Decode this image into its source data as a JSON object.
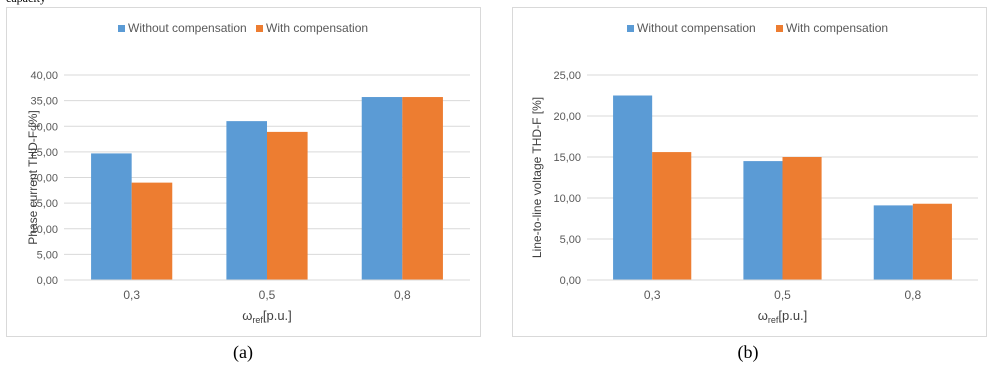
{
  "top_fragment": "capacity",
  "colors": {
    "without": "#5b9bd5",
    "with": "#ed7d31",
    "grid": "#d9d9d9",
    "text": "#595959",
    "axis": "#404040"
  },
  "chart_data": [
    {
      "type": "bar",
      "caption": "(a)",
      "categories": [
        "0,3",
        "0,5",
        "0,8"
      ],
      "series": [
        {
          "name": "Without compensation",
          "values": [
            24.7,
            31.0,
            35.7
          ]
        },
        {
          "name": "With compensation",
          "values": [
            19.0,
            28.9,
            35.7
          ]
        }
      ],
      "ylabel": "Phase current THD-F  [%]",
      "xlabel_main": "ω",
      "xlabel_sub": "ref",
      "xlabel_unit": "[p.u.]",
      "ylim": [
        0,
        40
      ],
      "yticks": [
        "0,00",
        "5,00",
        "10,00",
        "15,00",
        "20,00",
        "25,00",
        "30,00",
        "35,00",
        "40,00"
      ],
      "legend": "top",
      "grid": true
    },
    {
      "type": "bar",
      "caption": "(b)",
      "categories": [
        "0,3",
        "0,5",
        "0,8"
      ],
      "series": [
        {
          "name": "Without compensation",
          "values": [
            22.5,
            14.5,
            9.1
          ]
        },
        {
          "name": "With compensation",
          "values": [
            15.6,
            15.0,
            9.3
          ]
        }
      ],
      "ylabel": "Line-to-line voltage THD-F  [%]",
      "xlabel_main": "ω",
      "xlabel_sub": "ref",
      "xlabel_unit": "[p.u.]",
      "ylim": [
        0,
        25
      ],
      "yticks": [
        "0,00",
        "5,00",
        "10,00",
        "15,00",
        "20,00",
        "25,00"
      ],
      "legend": "top",
      "grid": true
    }
  ]
}
